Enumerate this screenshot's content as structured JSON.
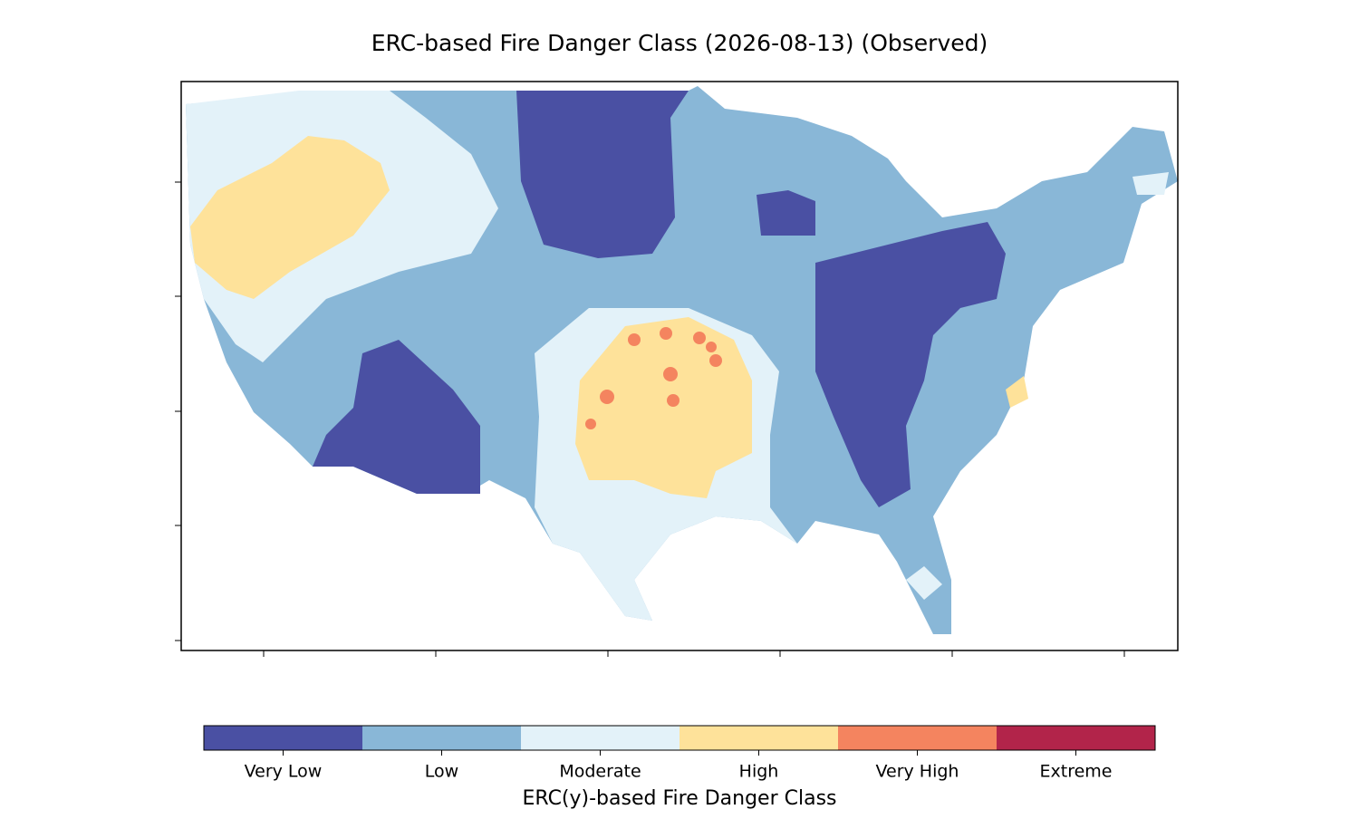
{
  "title": "ERC-based Fire Danger Class (2026-08-13) (Observed)",
  "colorbar": {
    "label": "ERC(y)-based Fire Danger Class",
    "classes": [
      {
        "label": "Very Low",
        "color": "#4a50a3"
      },
      {
        "label": "Low",
        "color": "#89b7d7"
      },
      {
        "label": "Moderate",
        "color": "#e3f2f9"
      },
      {
        "label": "High",
        "color": "#fee29a"
      },
      {
        "label": "Very High",
        "color": "#f4845f"
      },
      {
        "label": "Extreme",
        "color": "#b2244a"
      }
    ]
  }
}
